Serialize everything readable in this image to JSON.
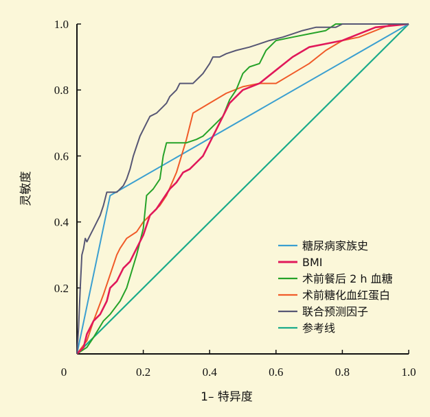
{
  "chart_data": {
    "type": "line",
    "xlabel": "1– 特异度",
    "ylabel": "灵敏度",
    "xlim": [
      0,
      1
    ],
    "ylim": [
      0,
      1
    ],
    "x_ticks": [
      "0",
      "0.2",
      "0.4",
      "0.6",
      "0.8",
      "1.0"
    ],
    "y_ticks": [
      "0.2",
      "0.4",
      "0.6",
      "0.8",
      "1.0"
    ],
    "grid": false,
    "legend_position": "bottom-right",
    "series": [
      {
        "name": "糖尿病家族史",
        "color": "#3a9fd0",
        "points": [
          [
            0,
            0
          ],
          [
            0.1,
            0.48
          ],
          [
            1,
            1
          ]
        ]
      },
      {
        "name": "BMI",
        "color": "#e0185a",
        "points": [
          [
            0,
            0
          ],
          [
            0.02,
            0.02
          ],
          [
            0.03,
            0.06
          ],
          [
            0.05,
            0.1
          ],
          [
            0.07,
            0.12
          ],
          [
            0.09,
            0.16
          ],
          [
            0.1,
            0.2
          ],
          [
            0.12,
            0.22
          ],
          [
            0.14,
            0.26
          ],
          [
            0.16,
            0.28
          ],
          [
            0.18,
            0.32
          ],
          [
            0.2,
            0.36
          ],
          [
            0.22,
            0.42
          ],
          [
            0.24,
            0.44
          ],
          [
            0.26,
            0.47
          ],
          [
            0.28,
            0.5
          ],
          [
            0.3,
            0.52
          ],
          [
            0.32,
            0.55
          ],
          [
            0.34,
            0.56
          ],
          [
            0.36,
            0.58
          ],
          [
            0.38,
            0.6
          ],
          [
            0.4,
            0.64
          ],
          [
            0.42,
            0.68
          ],
          [
            0.44,
            0.72
          ],
          [
            0.46,
            0.76
          ],
          [
            0.48,
            0.78
          ],
          [
            0.5,
            0.8
          ],
          [
            0.55,
            0.82
          ],
          [
            0.6,
            0.86
          ],
          [
            0.65,
            0.9
          ],
          [
            0.7,
            0.93
          ],
          [
            0.75,
            0.94
          ],
          [
            0.8,
            0.95
          ],
          [
            0.85,
            0.97
          ],
          [
            0.9,
            0.99
          ],
          [
            1,
            1
          ]
        ]
      },
      {
        "name": "术前餐后 2 h 血糖",
        "color": "#25a228",
        "points": [
          [
            0,
            0
          ],
          [
            0.03,
            0.02
          ],
          [
            0.05,
            0.05
          ],
          [
            0.08,
            0.1
          ],
          [
            0.1,
            0.12
          ],
          [
            0.13,
            0.16
          ],
          [
            0.15,
            0.2
          ],
          [
            0.18,
            0.3
          ],
          [
            0.2,
            0.38
          ],
          [
            0.21,
            0.48
          ],
          [
            0.23,
            0.5
          ],
          [
            0.25,
            0.53
          ],
          [
            0.26,
            0.6
          ],
          [
            0.27,
            0.64
          ],
          [
            0.33,
            0.64
          ],
          [
            0.36,
            0.65
          ],
          [
            0.38,
            0.66
          ],
          [
            0.42,
            0.7
          ],
          [
            0.44,
            0.72
          ],
          [
            0.46,
            0.77
          ],
          [
            0.48,
            0.8
          ],
          [
            0.5,
            0.85
          ],
          [
            0.52,
            0.87
          ],
          [
            0.55,
            0.88
          ],
          [
            0.57,
            0.92
          ],
          [
            0.6,
            0.95
          ],
          [
            0.65,
            0.96
          ],
          [
            0.7,
            0.97
          ],
          [
            0.75,
            0.98
          ],
          [
            0.78,
            1
          ],
          [
            1,
            1
          ]
        ]
      },
      {
        "name": "术前糖化血红蛋白",
        "color": "#f05a28",
        "points": [
          [
            0,
            0
          ],
          [
            0.03,
            0.04
          ],
          [
            0.05,
            0.1
          ],
          [
            0.08,
            0.18
          ],
          [
            0.1,
            0.24
          ],
          [
            0.12,
            0.3
          ],
          [
            0.13,
            0.32
          ],
          [
            0.15,
            0.35
          ],
          [
            0.18,
            0.37
          ],
          [
            0.2,
            0.4
          ],
          [
            0.22,
            0.42
          ],
          [
            0.25,
            0.45
          ],
          [
            0.27,
            0.48
          ],
          [
            0.3,
            0.55
          ],
          [
            0.33,
            0.65
          ],
          [
            0.35,
            0.73
          ],
          [
            0.4,
            0.76
          ],
          [
            0.45,
            0.79
          ],
          [
            0.5,
            0.81
          ],
          [
            0.55,
            0.82
          ],
          [
            0.6,
            0.82
          ],
          [
            0.65,
            0.85
          ],
          [
            0.7,
            0.88
          ],
          [
            0.75,
            0.92
          ],
          [
            0.8,
            0.95
          ],
          [
            0.85,
            0.96
          ],
          [
            0.9,
            0.98
          ],
          [
            0.95,
            1
          ],
          [
            1,
            1
          ]
        ]
      },
      {
        "name": "联合预测因子",
        "color": "#565674",
        "points": [
          [
            0,
            0
          ],
          [
            0.005,
            0.08
          ],
          [
            0.01,
            0.2
          ],
          [
            0.015,
            0.3
          ],
          [
            0.02,
            0.32
          ],
          [
            0.025,
            0.35
          ],
          [
            0.03,
            0.34
          ],
          [
            0.04,
            0.36
          ],
          [
            0.05,
            0.38
          ],
          [
            0.06,
            0.4
          ],
          [
            0.07,
            0.42
          ],
          [
            0.08,
            0.45
          ],
          [
            0.09,
            0.49
          ],
          [
            0.12,
            0.49
          ],
          [
            0.14,
            0.51
          ],
          [
            0.15,
            0.53
          ],
          [
            0.16,
            0.56
          ],
          [
            0.17,
            0.6
          ],
          [
            0.18,
            0.63
          ],
          [
            0.19,
            0.66
          ],
          [
            0.2,
            0.68
          ],
          [
            0.21,
            0.7
          ],
          [
            0.22,
            0.72
          ],
          [
            0.24,
            0.73
          ],
          [
            0.26,
            0.75
          ],
          [
            0.27,
            0.76
          ],
          [
            0.28,
            0.78
          ],
          [
            0.3,
            0.8
          ],
          [
            0.31,
            0.82
          ],
          [
            0.35,
            0.82
          ],
          [
            0.37,
            0.84
          ],
          [
            0.38,
            0.85
          ],
          [
            0.4,
            0.88
          ],
          [
            0.41,
            0.9
          ],
          [
            0.43,
            0.9
          ],
          [
            0.45,
            0.91
          ],
          [
            0.48,
            0.92
          ],
          [
            0.52,
            0.93
          ],
          [
            0.55,
            0.94
          ],
          [
            0.58,
            0.95
          ],
          [
            0.62,
            0.96
          ],
          [
            0.65,
            0.97
          ],
          [
            0.68,
            0.98
          ],
          [
            0.72,
            0.99
          ],
          [
            0.78,
            0.99
          ],
          [
            0.8,
            1
          ],
          [
            1,
            1
          ]
        ]
      },
      {
        "name": "参考线",
        "color": "#1aaa8a",
        "points": [
          [
            0,
            0
          ],
          [
            1,
            1
          ]
        ]
      }
    ]
  }
}
